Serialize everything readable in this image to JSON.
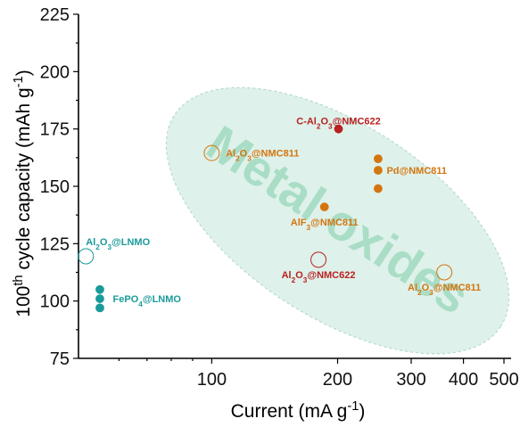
{
  "chart_data": {
    "type": "scatter",
    "xlabel": "Current (mA g⁻¹)",
    "ylabel": "100th cycle capacity (mAh g⁻¹)",
    "xscale": "log",
    "xlim": [
      48,
      520
    ],
    "ylim": [
      75,
      225
    ],
    "xticks": [
      100,
      200,
      300,
      400,
      500
    ],
    "yticks": [
      75,
      100,
      125,
      150,
      175,
      200,
      225
    ],
    "grid": false,
    "region_label": "Metal oxides",
    "colors": {
      "teal": "#1a9a9a",
      "orange": "#d4760f",
      "red": "#b82121",
      "region_fill": "#d9efe7",
      "region_text": "#a9ddc6"
    },
    "points": [
      {
        "x": 201,
        "y": 175,
        "style": "filled",
        "color": "red"
      },
      {
        "x": 250,
        "y": 162,
        "style": "filled",
        "color": "orange"
      },
      {
        "x": 250,
        "y": 157,
        "style": "filled",
        "color": "orange"
      },
      {
        "x": 250,
        "y": 149,
        "style": "filled",
        "color": "orange"
      },
      {
        "x": 186,
        "y": 141,
        "style": "filled",
        "color": "orange"
      },
      {
        "x": 100,
        "y": 164.5,
        "style": "open",
        "color": "orange"
      },
      {
        "x": 180,
        "y": 118,
        "style": "open",
        "color": "red"
      },
      {
        "x": 360,
        "y": 112.5,
        "style": "open",
        "color": "orange"
      },
      {
        "x": 50,
        "y": 119.5,
        "style": "open",
        "color": "teal"
      },
      {
        "x": 54,
        "y": 105,
        "style": "filled",
        "color": "teal"
      },
      {
        "x": 54,
        "y": 101,
        "style": "filled",
        "color": "teal"
      },
      {
        "x": 54,
        "y": 97,
        "style": "filled",
        "color": "teal"
      }
    ],
    "labels": [
      {
        "text": "C-Al₂O₃@NMC622",
        "color": "red",
        "x": 201,
        "y": 178.5
      },
      {
        "text": "Al₂O₃@NMC811",
        "color": "orange",
        "x": 108,
        "y": 164.5
      },
      {
        "text": "Pd@NMC811",
        "color": "orange",
        "x": 262,
        "y": 157
      },
      {
        "text": "AlF₃@NMC811",
        "color": "orange",
        "x": 186,
        "y": 134.5
      },
      {
        "text": "Al₂O₃@NMC622",
        "color": "red",
        "x": 180,
        "y": 111.5
      },
      {
        "text": "Al₂O₃@NMC811",
        "color": "orange",
        "x": 360,
        "y": 106
      },
      {
        "text": "Al₂O₃@LNMO",
        "color": "teal",
        "x": 50,
        "y": 126
      },
      {
        "text": "FePO₄@LNMO",
        "color": "teal",
        "x": 58,
        "y": 101
      }
    ]
  }
}
